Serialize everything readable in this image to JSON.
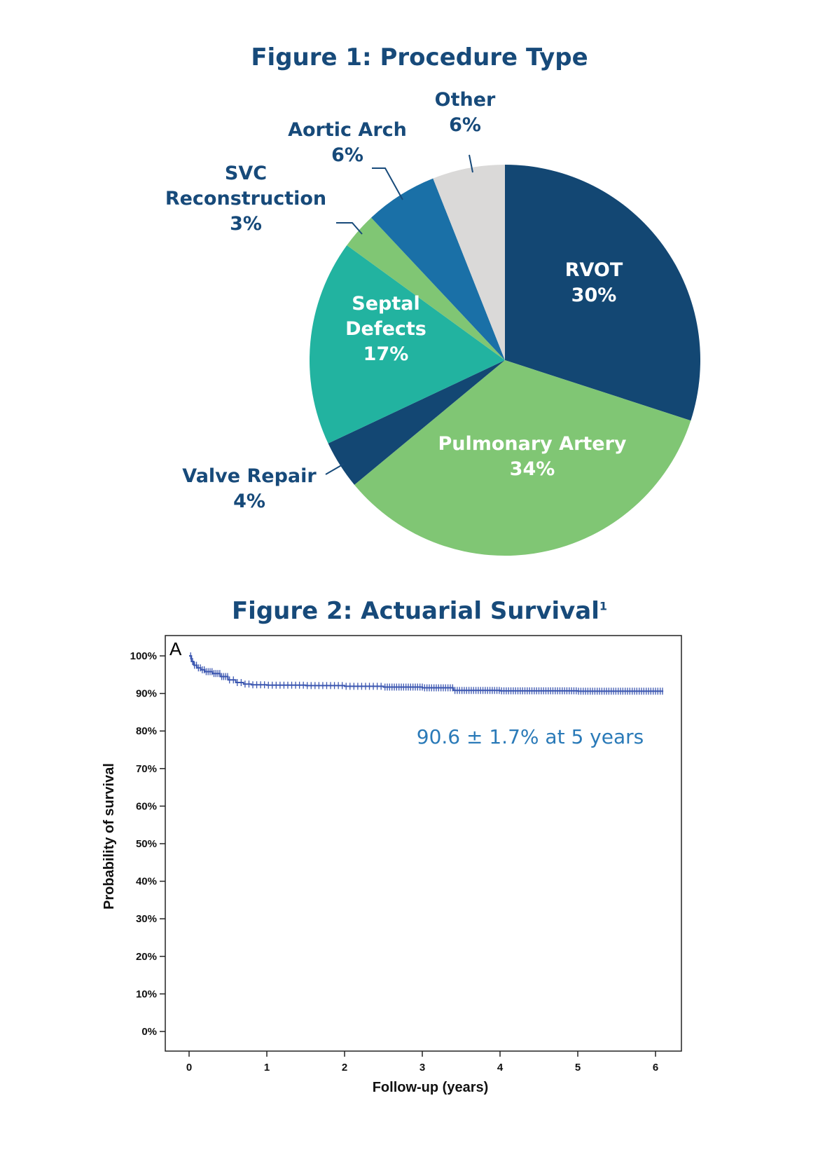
{
  "chart_data": [
    {
      "type": "pie",
      "title": "Figure 1: Procedure Type",
      "slices": [
        {
          "label": "RVOT",
          "label_lines": [
            "RVOT"
          ],
          "value": 30,
          "display": "30%",
          "color": "#134773"
        },
        {
          "label": "Pulmonary Artery",
          "label_lines": [
            "Pulmonary Artery"
          ],
          "value": 34,
          "display": "34%",
          "color": "#80c674"
        },
        {
          "label": "Valve Repair",
          "label_lines": [
            "Valve Repair"
          ],
          "value": 4,
          "display": "4%",
          "color": "#134773"
        },
        {
          "label": "Septal Defects",
          "label_lines": [
            "Septal",
            "Defects"
          ],
          "value": 17,
          "display": "17%",
          "color": "#22b3a0"
        },
        {
          "label": "SVC Reconstruction",
          "label_lines": [
            "SVC",
            "Reconstruction"
          ],
          "value": 3,
          "display": "3%",
          "color": "#80c674"
        },
        {
          "label": "Aortic Arch",
          "label_lines": [
            "Aortic Arch"
          ],
          "value": 6,
          "display": "6%",
          "color": "#1a70a7"
        },
        {
          "label": "Other",
          "label_lines": [
            "Other"
          ],
          "value": 6,
          "display": "6%",
          "color": "#dad9d8"
        }
      ]
    },
    {
      "type": "line",
      "title": "Figure 2: Actuarial Survival",
      "title_superscript": "1",
      "panel_label": "A",
      "xlabel": "Follow-up (years)",
      "ylabel": "Probability of survival",
      "xlim": [
        0,
        6.5
      ],
      "ylim": [
        0,
        100
      ],
      "x_ticks": [
        "0",
        "1",
        "2",
        "3",
        "4",
        "5",
        "6"
      ],
      "y_ticks": [
        "0%",
        "10%",
        "20%",
        "30%",
        "40%",
        "50%",
        "60%",
        "70%",
        "80%",
        "90%",
        "100%"
      ],
      "annotation": "90.6 ± 1.7% at 5 years",
      "color": "#3b56b0",
      "series": [
        {
          "x": [
            0,
            0.03,
            0.06,
            0.1,
            0.15,
            0.2,
            0.3,
            0.4,
            0.5,
            0.6,
            0.7,
            0.8,
            1.0,
            1.5,
            2.0,
            2.5,
            3.0,
            3.4,
            4.0,
            5.0,
            6.1
          ],
          "y": [
            100,
            98.5,
            97.5,
            96.8,
            96.3,
            95.8,
            95.3,
            94.5,
            93.6,
            92.9,
            92.5,
            92.3,
            92.2,
            92.1,
            91.9,
            91.7,
            91.5,
            90.8,
            90.7,
            90.6,
            90.6
          ]
        }
      ]
    }
  ]
}
